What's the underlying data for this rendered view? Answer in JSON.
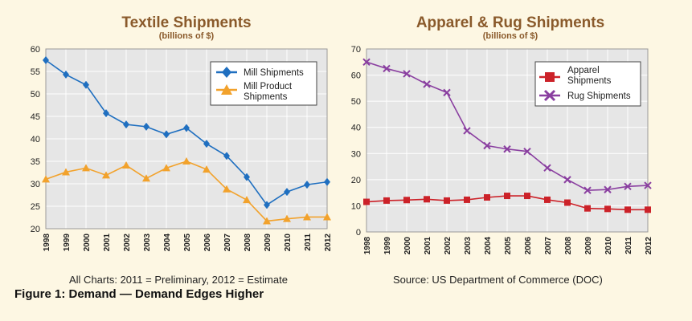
{
  "chart_data": [
    {
      "type": "line",
      "title": "Textile Shipments",
      "subtitle": "(billions of $)",
      "categories": [
        "1998",
        "1999",
        "2000",
        "2001",
        "2002",
        "2003",
        "2004",
        "2005",
        "2006",
        "2007",
        "2008",
        "2009",
        "2010",
        "2011",
        "2012"
      ],
      "ylim": [
        20,
        60
      ],
      "yticks": [
        20,
        25,
        30,
        35,
        40,
        45,
        50,
        55,
        60
      ],
      "grid": true,
      "legend_position": "top-right",
      "series": [
        {
          "name": "Mill Shipments",
          "color": "#1f6fc0",
          "marker": "diamond",
          "values": [
            57.5,
            54.3,
            52.0,
            45.7,
            43.2,
            42.7,
            41.0,
            42.4,
            38.9,
            36.2,
            31.5,
            25.3,
            28.2,
            29.8,
            30.4
          ]
        },
        {
          "name": "Mill Product Shipments",
          "color": "#f2a22c",
          "marker": "triangle",
          "values": [
            31.0,
            32.6,
            33.5,
            31.9,
            34.1,
            31.2,
            33.5,
            35.0,
            33.2,
            28.8,
            26.4,
            21.7,
            22.2,
            22.6,
            22.6
          ]
        }
      ]
    },
    {
      "type": "line",
      "title": "Apparel & Rug Shipments",
      "subtitle": "(billions of $)",
      "categories": [
        "1998",
        "1999",
        "2000",
        "2001",
        "2002",
        "2003",
        "2004",
        "2005",
        "2006",
        "2007",
        "2008",
        "2009",
        "2010",
        "2011",
        "2012"
      ],
      "ylim": [
        0,
        70
      ],
      "yticks": [
        0,
        10,
        20,
        30,
        40,
        50,
        60,
        70
      ],
      "grid": true,
      "legend_position": "top-right",
      "series": [
        {
          "name": "Apparel Shipments",
          "color": "#cc2229",
          "marker": "square",
          "values": [
            11.5,
            12.0,
            12.2,
            12.5,
            12.0,
            12.3,
            13.2,
            13.8,
            13.8,
            12.3,
            11.2,
            9.0,
            8.8,
            8.5,
            8.5
          ]
        },
        {
          "name": "Rug Shipments",
          "color": "#8a3fa0",
          "marker": "x",
          "values": [
            65.0,
            62.5,
            60.5,
            56.5,
            53.3,
            38.7,
            33.0,
            31.7,
            30.8,
            24.5,
            20.0,
            15.9,
            16.2,
            17.4,
            17.8
          ]
        }
      ]
    }
  ],
  "notes": {
    "left": "All Charts: 2011 = Preliminary, 2012 = Estimate",
    "right": "Source: US Department of Commerce (DOC)",
    "figure_caption": "Figure 1: Demand — Demand Edges Higher"
  }
}
